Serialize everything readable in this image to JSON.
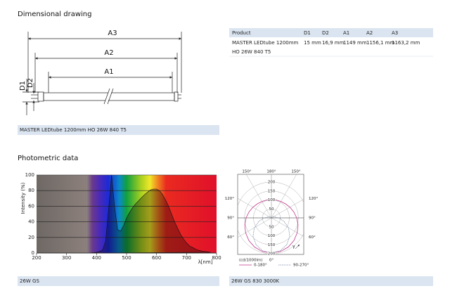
{
  "dimensional": {
    "title": "Dimensional drawing",
    "labels": {
      "a3": "A3",
      "a2": "A2",
      "a1": "A1",
      "d1": "D1",
      "d2": "D2"
    },
    "caption": "MASTER LEDtube 1200mm HO 26W 840 T5"
  },
  "table": {
    "header": [
      "Product",
      "D1",
      "D2",
      "A1",
      "A2",
      "A3"
    ],
    "rows": [
      {
        "product": [
          "MASTER LEDtube 1200mm",
          "HO 26W 840 T5"
        ],
        "cells": [
          "15 mm",
          "16,9 mm",
          "1149 mm",
          "1156,1 mm",
          "1163,2 mm"
        ]
      }
    ]
  },
  "photometric": {
    "title": "Photometric data",
    "spectrum": {
      "type": "area",
      "caption": "26W GS",
      "xlabel": "λ[nm]",
      "ylabel": "Intensity (%)",
      "x": [
        380,
        390,
        400,
        410,
        420,
        430,
        440,
        450,
        460,
        470,
        480,
        490,
        500,
        510,
        520,
        530,
        540,
        550,
        560,
        570,
        580,
        590,
        600,
        610,
        620,
        630,
        640,
        650,
        660,
        670,
        680,
        690,
        700,
        710,
        720,
        730,
        740,
        750,
        760,
        770,
        780
      ],
      "values": [
        0,
        0.5,
        1,
        2,
        4,
        15,
        55,
        100,
        60,
        30,
        28,
        35,
        45,
        52,
        58,
        63,
        67,
        71,
        75,
        78,
        81,
        82,
        82,
        80,
        75,
        68,
        60,
        50,
        40,
        32,
        24,
        18,
        13,
        9,
        7,
        5,
        3.5,
        2.5,
        2,
        1.5,
        1
      ],
      "xlim": [
        200,
        800
      ],
      "ylim": [
        0,
        100
      ],
      "xticks": [
        200,
        300,
        400,
        500,
        600,
        700,
        800
      ],
      "yticks": [
        0,
        20,
        40,
        60,
        80,
        100
      ],
      "grid": true
    },
    "polar": {
      "type": "polar",
      "caption": "26W GS 830 3000K",
      "unit": "(cd/1000lm)",
      "gamma_label": "γ",
      "angles": [
        0,
        15,
        30,
        45,
        60,
        75,
        90,
        105,
        120,
        135,
        150,
        165,
        180
      ],
      "rlim": [
        0,
        200
      ],
      "rticks": [
        50,
        100,
        150,
        200
      ],
      "angle_ticks": [
        {
          "value": 0,
          "label": "0°"
        },
        {
          "value": 60,
          "label": "60°"
        },
        {
          "value": 90,
          "label": "90°"
        },
        {
          "value": 120,
          "label": "120°"
        },
        {
          "value": 150,
          "label": "150°"
        },
        {
          "value": 180,
          "label": "180°"
        }
      ],
      "series": [
        {
          "name": "0-180°",
          "color": "#c0388a",
          "dash": false,
          "values": [
            196,
            194,
            188,
            178,
            166,
            154,
            141,
            129,
            119,
            111,
            106,
            103,
            102
          ]
        },
        {
          "name": "90-270°",
          "color": "#7a8aa8",
          "dash": true,
          "values": [
            196,
            190,
            172,
            145,
            110,
            72,
            40,
            20,
            10,
            5,
            2,
            1,
            0
          ]
        }
      ]
    }
  }
}
